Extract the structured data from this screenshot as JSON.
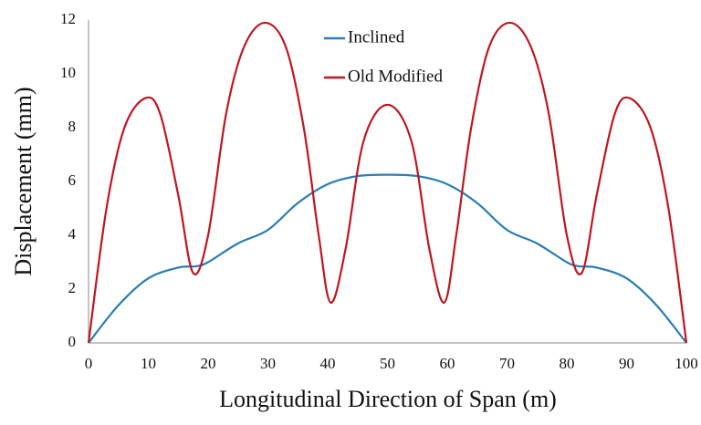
{
  "chart_data": {
    "type": "line",
    "xlabel": "Longitudinal Direction of Span (m)",
    "ylabel": "Displacement (mm)",
    "xlim": [
      0,
      100
    ],
    "xticks": [
      0,
      10,
      20,
      30,
      40,
      50,
      60,
      70,
      80,
      90,
      100
    ],
    "ylim": [
      0,
      12
    ],
    "yticks": [
      0,
      2,
      4,
      6,
      8,
      10,
      12
    ],
    "grid": false,
    "legend": "top",
    "series": [
      {
        "name": "Inclined",
        "color": "#2a7db5",
        "x": [
          0,
          5,
          10,
          15,
          18,
          20,
          25,
          30,
          35,
          40,
          45,
          50,
          55,
          60,
          65,
          70,
          75,
          80,
          82,
          85,
          90,
          95,
          100
        ],
        "values": [
          0,
          1.4,
          2.4,
          2.8,
          2.85,
          3.0,
          3.7,
          4.2,
          5.2,
          5.9,
          6.2,
          6.25,
          6.2,
          5.9,
          5.2,
          4.2,
          3.7,
          3.0,
          2.85,
          2.8,
          2.4,
          1.4,
          0
        ]
      },
      {
        "name": "Old Modified",
        "color": "#c0161f",
        "x": [
          0,
          3,
          6,
          9.5,
          12,
          15,
          17.5,
          20,
          23,
          26,
          29.5,
          33,
          36,
          38.5,
          40.5,
          43,
          46,
          50,
          54,
          57,
          59.5,
          61.5,
          64,
          67,
          70.5,
          74,
          77,
          80,
          82.5,
          85,
          88,
          90.5,
          94,
          97,
          100
        ],
        "values": [
          0,
          5,
          8,
          9.1,
          8.5,
          5.5,
          2.6,
          4,
          8.5,
          11,
          11.9,
          11,
          8,
          4,
          1.5,
          3.5,
          7.5,
          8.85,
          7.5,
          3.5,
          1.5,
          4,
          8,
          11,
          11.9,
          11,
          8.5,
          4,
          2.6,
          5.5,
          8.5,
          9.1,
          8,
          5,
          0
        ]
      }
    ]
  }
}
